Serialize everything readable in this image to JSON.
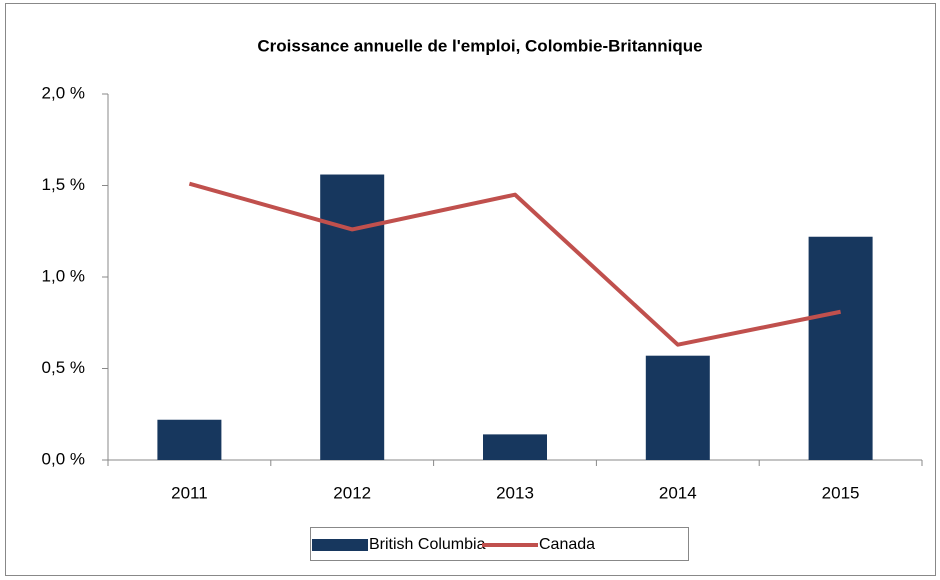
{
  "chart_data": {
    "type": "bar",
    "title": "Croissance annuelle de l'emploi,  Colombie-Britannique",
    "categories": [
      "2011",
      "2012",
      "2013",
      "2014",
      "2015"
    ],
    "series": [
      {
        "name": "British Columbia",
        "type": "bar",
        "color": "#17375e",
        "values": [
          0.22,
          1.56,
          0.14,
          0.57,
          1.22
        ]
      },
      {
        "name": "Canada",
        "type": "line",
        "color": "#c0504d",
        "values": [
          1.51,
          1.26,
          1.45,
          0.63,
          0.81
        ]
      }
    ],
    "ylim": [
      0,
      2
    ],
    "yticks": [
      {
        "value": 0,
        "label": "0,0 %"
      },
      {
        "value": 0.5,
        "label": "0,5 %"
      },
      {
        "value": 1,
        "label": "1,0 %"
      },
      {
        "value": 1.5,
        "label": "1,5 %"
      },
      {
        "value": 2,
        "label": "2,0 %"
      }
    ],
    "grid": false,
    "legend": "bottom"
  }
}
